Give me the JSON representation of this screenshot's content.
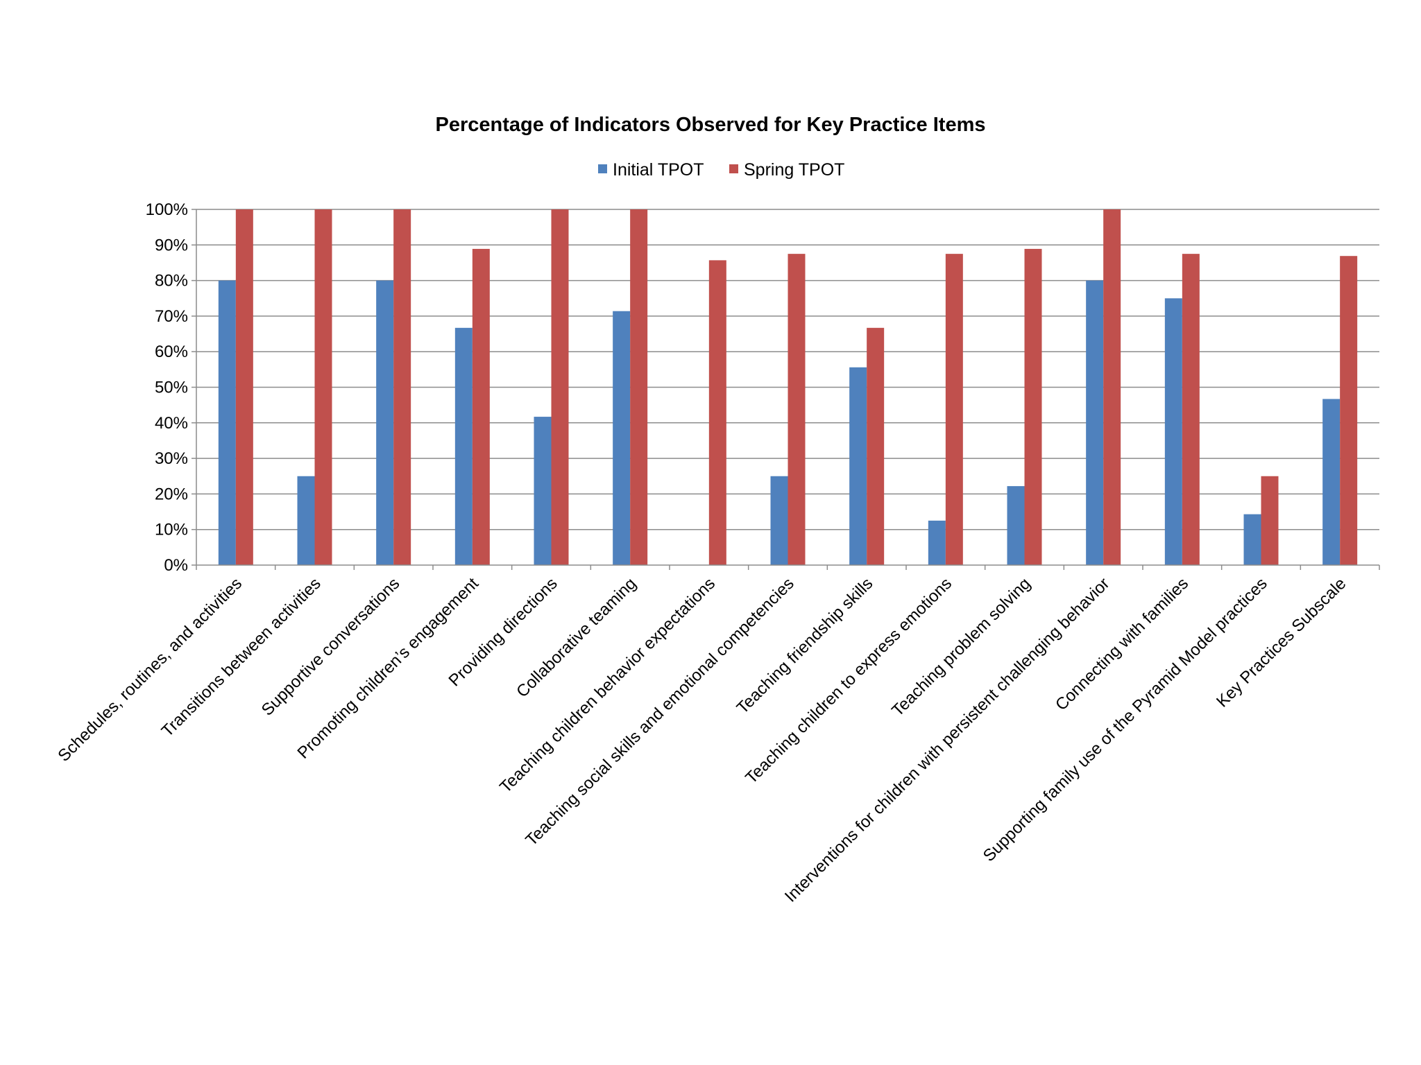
{
  "chart_data": {
    "type": "bar",
    "title": "Percentage of Indicators Observed for Key Practice Items",
    "xlabel": "",
    "ylabel": "",
    "ylim": [
      0,
      100
    ],
    "y_ticks": [
      "0%",
      "10%",
      "20%",
      "30%",
      "40%",
      "50%",
      "60%",
      "70%",
      "80%",
      "90%",
      "100%"
    ],
    "grid": true,
    "legend_position": "top-center",
    "categories": [
      "Schedules, routines, and activities",
      "Transitions between activities",
      "Supportive conversations",
      "Promoting children’s engagement",
      "Providing directions",
      "Collaborative teaming",
      "Teaching children behavior expectations",
      "Teaching social skills and emotional competencies",
      "Teaching friendship skills",
      "Teaching children to express emotions",
      "Teaching problem solving",
      "Interventions for children with persistent challenging behavior",
      "Connecting with families",
      "Supporting family use of the Pyramid Model practices",
      "Key Practices Subscale"
    ],
    "series": [
      {
        "name": "Initial TPOT",
        "color": "#4F81BD",
        "values": [
          80,
          25,
          80,
          66.7,
          41.7,
          71.4,
          0,
          25,
          55.6,
          12.5,
          22.2,
          80,
          75,
          14.3,
          46.7
        ]
      },
      {
        "name": "Spring TPOT",
        "color": "#C0504D",
        "values": [
          100,
          100,
          100,
          88.9,
          100,
          100,
          85.7,
          87.5,
          66.7,
          87.5,
          88.9,
          100,
          87.5,
          25,
          86.9
        ]
      }
    ]
  }
}
